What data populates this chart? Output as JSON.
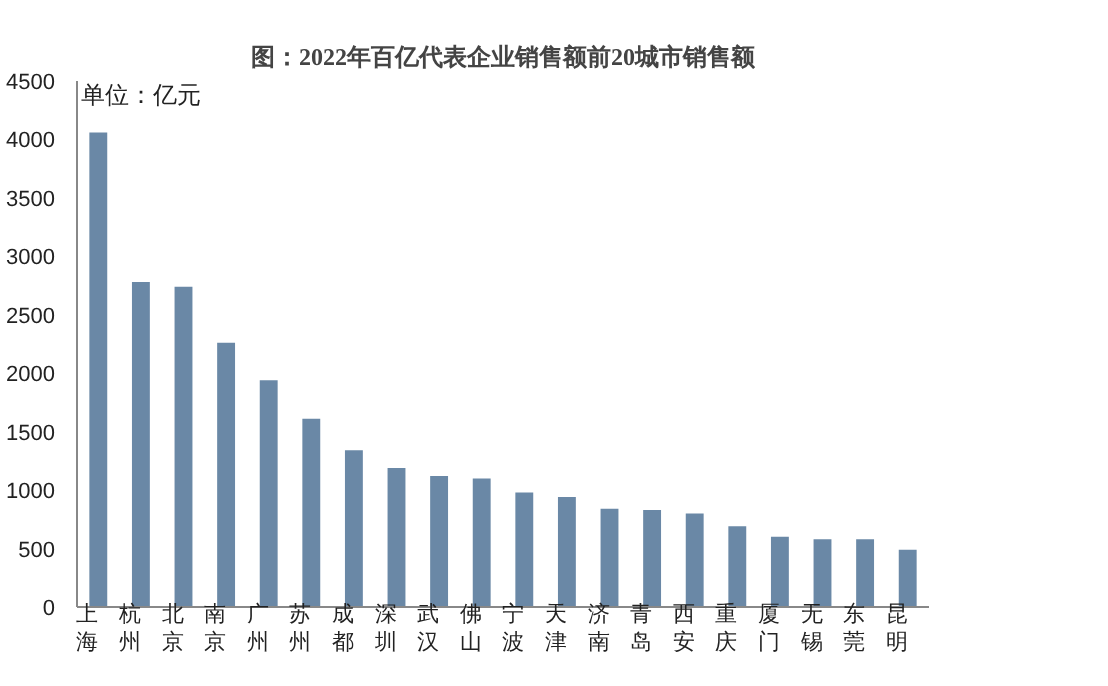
{
  "chart_data": {
    "type": "bar",
    "title": "图：2022年百亿代表企业销售额前20城市销售额",
    "annotations": [
      "单位：亿元"
    ],
    "categories": [
      "上海",
      "杭州",
      "北京",
      "南京",
      "广州",
      "苏州",
      "成都",
      "深圳",
      "武汉",
      "佛山",
      "宁波",
      "天津",
      "济南",
      "青岛",
      "西安",
      "重庆",
      "厦门",
      "无锡",
      "东莞",
      "昆明"
    ],
    "values": [
      4060,
      2780,
      2740,
      2260,
      1940,
      1610,
      1340,
      1190,
      1120,
      1100,
      980,
      940,
      840,
      830,
      800,
      690,
      600,
      580,
      580,
      490
    ],
    "color": "#6a88a6",
    "ylim": [
      0,
      4500
    ],
    "yticks": [
      0,
      500,
      1000,
      1500,
      2000,
      2500,
      3000,
      3500,
      4000,
      4500
    ],
    "grid": false
  }
}
